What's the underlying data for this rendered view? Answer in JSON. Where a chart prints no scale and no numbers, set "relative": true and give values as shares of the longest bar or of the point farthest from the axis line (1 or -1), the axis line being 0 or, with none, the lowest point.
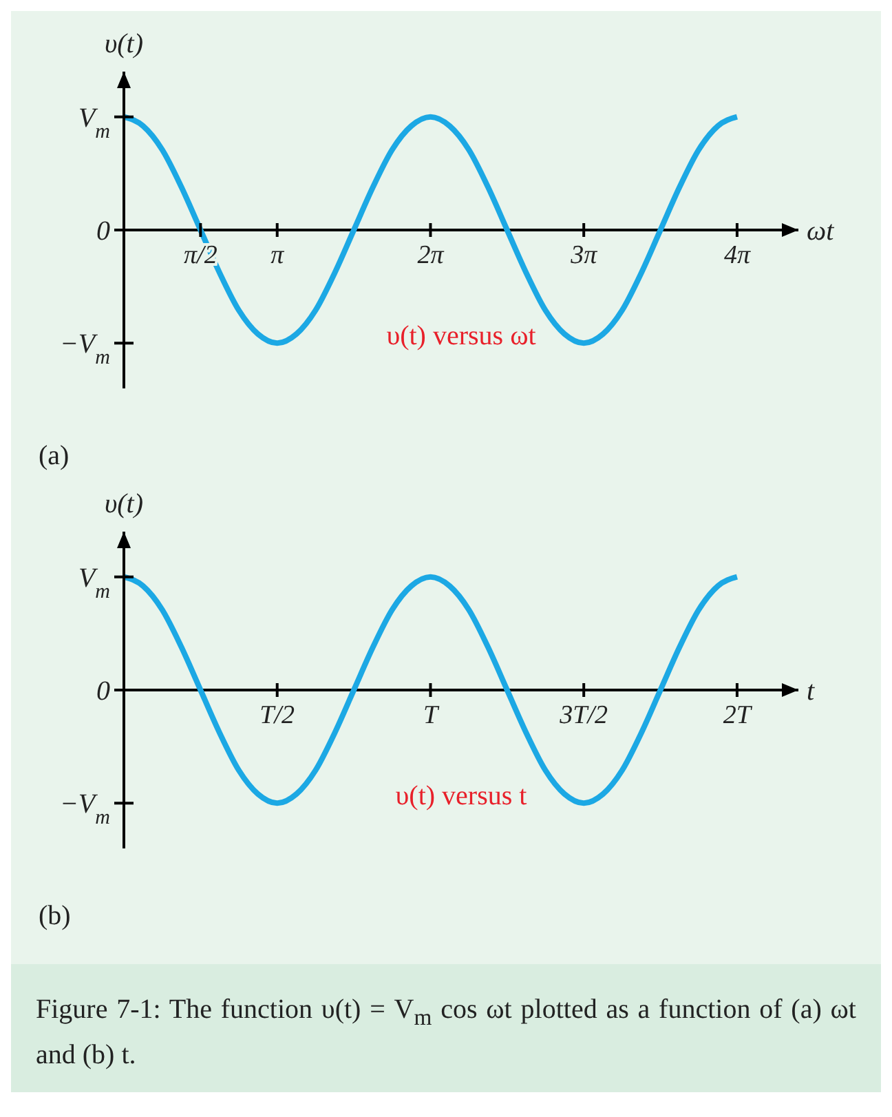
{
  "chart_data": [
    {
      "type": "line",
      "relative": true,
      "ylabel": "υ(t)",
      "xlabel": "ωt",
      "marker": "none",
      "annotations": [
        "V$_{m}$",
        "0",
        "−V$_{m}$",
        "υ(t) versus ωt",
        "(a)"
      ],
      "categories": [
        null,
        null,
        null,
        null,
        "π/2",
        null,
        null,
        null,
        "π",
        null,
        null,
        null,
        null,
        null,
        null,
        null,
        "2π",
        null,
        null,
        null,
        null,
        null,
        null,
        null,
        "3π",
        null,
        null,
        null,
        null,
        null,
        null,
        null,
        "4π"
      ],
      "series": [
        {
          "color": "#1ca8e4",
          "values": [
            1,
            0.92,
            0.71,
            0.38,
            0,
            -0.38,
            -0.71,
            -0.92,
            -1,
            -0.92,
            -0.71,
            -0.38,
            0,
            0.38,
            0.71,
            0.92,
            1,
            0.92,
            0.71,
            0.38,
            0,
            -0.38,
            -0.71,
            -0.92,
            -1,
            -0.92,
            -0.71,
            -0.38,
            0,
            0.38,
            0.71,
            0.92,
            1
          ]
        }
      ]
    },
    {
      "type": "line",
      "relative": true,
      "ylabel": "υ(t)",
      "xlabel": "t",
      "marker": "none",
      "annotations": [
        "V$_{m}$",
        "0",
        "−V$_{m}$",
        "υ(t) versus t",
        "(b)",
        "Figure 7-1: The function υ(t) = V$_{m}$ cos ωt plotted as a function of (a) ωt and (b) t."
      ],
      "categories": [
        null,
        null,
        null,
        null,
        null,
        null,
        null,
        null,
        "T/2",
        null,
        null,
        null,
        null,
        null,
        null,
        null,
        "T",
        null,
        null,
        null,
        null,
        null,
        null,
        null,
        "3T/2",
        null,
        null,
        null,
        null,
        null,
        null,
        null,
        "2T"
      ],
      "series": [
        {
          "color": "#1ca8e4",
          "values": [
            1,
            0.92,
            0.71,
            0.38,
            0,
            -0.38,
            -0.71,
            -0.92,
            -1,
            -0.92,
            -0.71,
            -0.38,
            0,
            0.38,
            0.71,
            0.92,
            1,
            0.92,
            0.71,
            0.38,
            0,
            -0.38,
            -0.71,
            -0.92,
            -1,
            -0.92,
            -0.71,
            -0.38,
            0,
            0.38,
            0.71,
            0.92,
            1
          ]
        }
      ]
    }
  ]
}
